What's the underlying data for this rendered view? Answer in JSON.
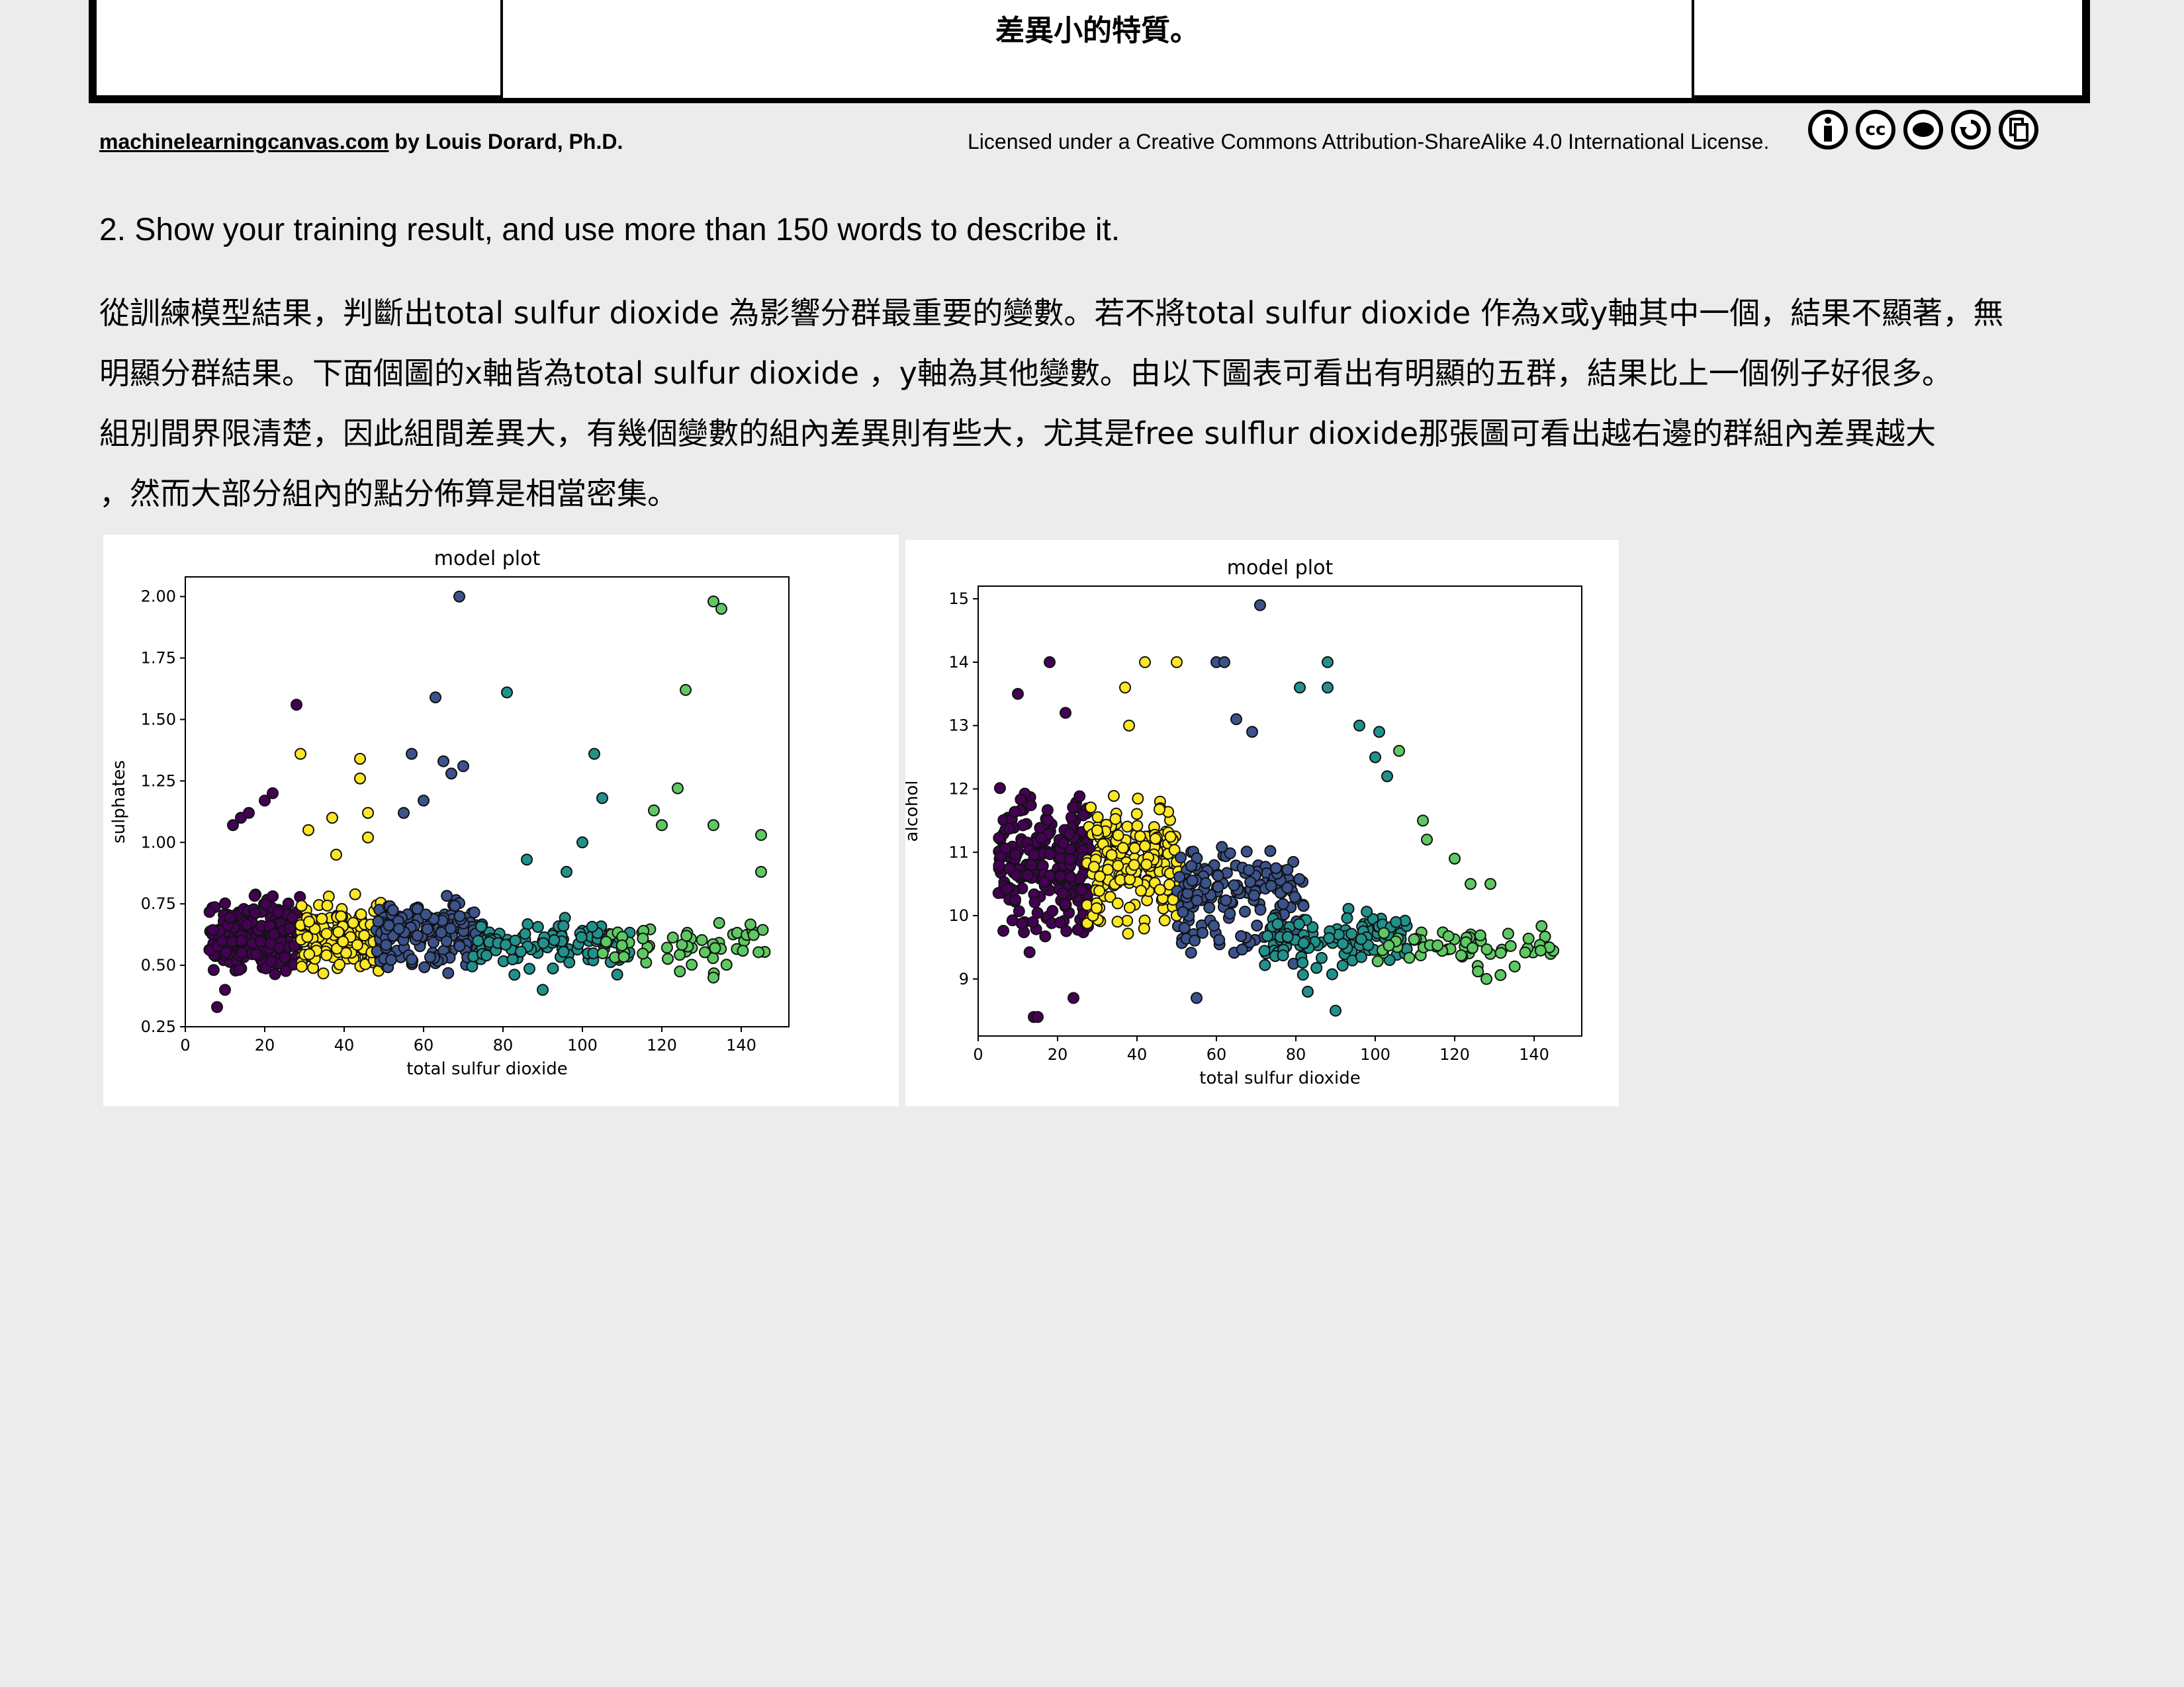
{
  "canvas_fragment": {
    "cell_text": "差異小的特質。"
  },
  "footer": {
    "site": "machinelearningcanvas.com",
    "author": " by Louis Dorard, Ph.D.",
    "license": "Licensed under a Creative Commons Attribution-ShareAlike 4.0 International License.",
    "license_icons": [
      "attribution-icon",
      "cc-icon",
      "nc-icon",
      "sharealike-icon",
      "copy-icon"
    ]
  },
  "question": "2.  Show your training result, and use more than 150 words to describe it.",
  "answer_lines": [
    "從訓練模型結果，判斷出total sulfur dioxide 為影響分群最重要的變數。若不將total sulfur dioxide 作為x或y軸其中一個，結果不顯著，無",
    "明顯分群結果。下面個圖的x軸皆為total sulfur dioxide ，y軸為其他變數。由以下圖表可看出有明顯的五群，結果比上一個例子好很多。",
    "組別間界限清楚，因此組間差異大，有幾個變數的組內差異則有些大，尤其是free sulflur dioxide那張圖可看出越右邊的群組內差異越大",
    "，然而大部分組內的點分佈算是相當密集。"
  ],
  "colors": {
    "cluster_colors": [
      "#440154",
      "#3b528b",
      "#21918c",
      "#5ec962",
      "#fde725"
    ]
  },
  "chart_data": [
    {
      "type": "scatter",
      "title": "model plot",
      "xlabel": "total sulfur dioxide",
      "ylabel": "sulphates",
      "xlim": [
        0,
        152
      ],
      "ylim": [
        0.25,
        2.08
      ],
      "xticks": [
        "0",
        "20",
        "40",
        "60",
        "80",
        "100",
        "120",
        "140"
      ],
      "yticks": [
        "0.25",
        "0.50",
        "0.75",
        "1.00",
        "1.25",
        "1.50",
        "1.75",
        "2.00"
      ],
      "series": [
        {
          "cluster": 0,
          "x_range": [
            6,
            29
          ],
          "y_center": 0.62,
          "y_spread": 0.16,
          "count": 220,
          "outliers": [
            [
              8,
              0.33
            ],
            [
              10,
              0.4
            ],
            [
              12,
              1.07
            ],
            [
              14,
              1.1
            ],
            [
              16,
              1.12
            ],
            [
              20,
              1.17
            ],
            [
              22,
              1.2
            ],
            [
              28,
              1.56
            ]
          ]
        },
        {
          "cluster": 4,
          "x_range": [
            29,
            50
          ],
          "y_center": 0.62,
          "y_spread": 0.14,
          "count": 170,
          "outliers": [
            [
              29,
              1.36
            ],
            [
              37,
              1.1
            ],
            [
              44,
              1.34
            ],
            [
              44,
              1.26
            ],
            [
              46,
              1.12
            ],
            [
              46,
              1.02
            ],
            [
              31,
              1.05
            ],
            [
              38,
              0.95
            ]
          ]
        },
        {
          "cluster": 1,
          "x_range": [
            48,
            75
          ],
          "y_center": 0.63,
          "y_spread": 0.14,
          "count": 170,
          "outliers": [
            [
              57,
              1.36
            ],
            [
              63,
              1.59
            ],
            [
              65,
              1.33
            ],
            [
              67,
              1.28
            ],
            [
              69,
              2.0
            ],
            [
              70,
              1.31
            ],
            [
              60,
              1.17
            ],
            [
              55,
              1.12
            ]
          ]
        },
        {
          "cluster": 2,
          "x_range": [
            72,
            112
          ],
          "y_center": 0.58,
          "y_spread": 0.1,
          "count": 110,
          "outliers": [
            [
              81,
              1.61
            ],
            [
              103,
              1.36
            ],
            [
              105,
              1.18
            ],
            [
              100,
              1.0
            ],
            [
              86,
              0.93
            ],
            [
              96,
              0.88
            ],
            [
              90,
              0.4
            ]
          ]
        },
        {
          "cluster": 3,
          "x_range": [
            105,
            146
          ],
          "y_center": 0.58,
          "y_spread": 0.09,
          "count": 55,
          "outliers": [
            [
              133,
              1.98
            ],
            [
              135,
              1.95
            ],
            [
              126,
              1.62
            ],
            [
              124,
              1.22
            ],
            [
              118,
              1.13
            ],
            [
              120,
              1.07
            ],
            [
              133,
              1.07
            ],
            [
              145,
              1.03
            ],
            [
              145,
              0.88
            ],
            [
              133,
              0.45
            ]
          ]
        }
      ]
    },
    {
      "type": "scatter",
      "title": "model plot",
      "xlabel": "total sulfur dioxide",
      "ylabel": "alcohol",
      "xlim": [
        0,
        152
      ],
      "ylim": [
        8.1,
        15.2
      ],
      "xticks": [
        "0",
        "20",
        "40",
        "60",
        "80",
        "100",
        "120",
        "140"
      ],
      "yticks": [
        "9",
        "10",
        "11",
        "12",
        "13",
        "14",
        "15"
      ],
      "series": [
        {
          "cluster": 0,
          "x_range": [
            5,
            28
          ],
          "y_center": 10.8,
          "y_spread": 1.1,
          "count": 230,
          "outliers": [
            [
              14,
              8.4
            ],
            [
              15,
              8.4
            ],
            [
              18,
              14.0
            ],
            [
              24,
              8.7
            ],
            [
              10,
              13.5
            ],
            [
              22,
              13.2
            ]
          ]
        },
        {
          "cluster": 4,
          "x_range": [
            27,
            51
          ],
          "y_center": 10.8,
          "y_spread": 1.0,
          "count": 180,
          "outliers": [
            [
              42,
              14.0
            ],
            [
              50,
              14.0
            ],
            [
              37,
              13.6
            ],
            [
              38,
              13.0
            ]
          ]
        },
        {
          "cluster": 1,
          "x_range": [
            50,
            82
          ],
          "y_center": 10.3,
          "y_spread": 0.9,
          "count": 160,
          "outliers": [
            [
              71,
              14.9
            ],
            [
              60,
              14.0
            ],
            [
              62,
              14.0
            ],
            [
              65,
              13.1
            ],
            [
              55,
              8.7
            ],
            [
              69,
              12.9
            ]
          ]
        },
        {
          "cluster": 2,
          "x_range": [
            72,
            108
          ],
          "y_center": 9.6,
          "y_spread": 0.45,
          "count": 110,
          "outliers": [
            [
              88,
              14.0
            ],
            [
              88,
              13.6
            ],
            [
              81,
              13.6
            ],
            [
              90,
              8.5
            ],
            [
              83,
              8.8
            ],
            [
              101,
              12.9
            ],
            [
              96,
              13.0
            ],
            [
              100,
              12.5
            ],
            [
              103,
              12.2
            ]
          ]
        },
        {
          "cluster": 3,
          "x_range": [
            100,
            146
          ],
          "y_center": 9.5,
          "y_spread": 0.35,
          "count": 60,
          "outliers": [
            [
              106,
              12.6
            ],
            [
              112,
              11.5
            ],
            [
              113,
              11.2
            ],
            [
              120,
              10.9
            ],
            [
              124,
              10.5
            ],
            [
              129,
              10.5
            ],
            [
              128,
              9.0
            ]
          ]
        }
      ]
    }
  ]
}
